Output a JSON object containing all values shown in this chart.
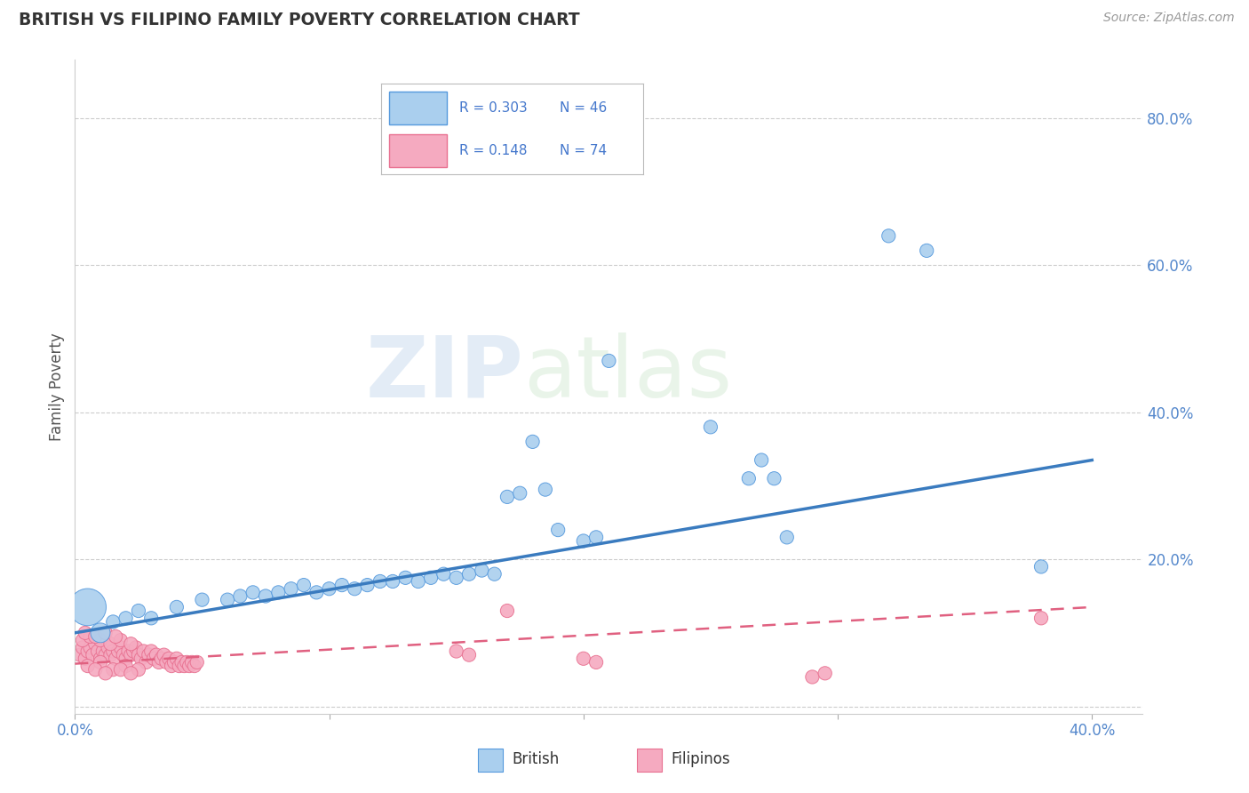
{
  "title": "BRITISH VS FILIPINO FAMILY POVERTY CORRELATION CHART",
  "source": "Source: ZipAtlas.com",
  "ylabel": "Family Poverty",
  "xlim": [
    0.0,
    0.42
  ],
  "ylim": [
    -0.01,
    0.88
  ],
  "legend_british_R": "0.303",
  "legend_british_N": "46",
  "legend_filipino_R": "0.148",
  "legend_filipino_N": "74",
  "british_color": "#aacfee",
  "british_line_color": "#3a7bbf",
  "british_edge_color": "#5599dd",
  "filipino_color": "#f5aac0",
  "filipino_line_color": "#e06080",
  "filipino_edge_color": "#e87090",
  "watermark_zip": "ZIP",
  "watermark_atlas": "atlas",
  "british_points": [
    [
      0.005,
      0.135
    ],
    [
      0.01,
      0.1
    ],
    [
      0.015,
      0.115
    ],
    [
      0.02,
      0.12
    ],
    [
      0.025,
      0.13
    ],
    [
      0.03,
      0.12
    ],
    [
      0.04,
      0.135
    ],
    [
      0.05,
      0.145
    ],
    [
      0.06,
      0.145
    ],
    [
      0.065,
      0.15
    ],
    [
      0.07,
      0.155
    ],
    [
      0.075,
      0.15
    ],
    [
      0.08,
      0.155
    ],
    [
      0.085,
      0.16
    ],
    [
      0.09,
      0.165
    ],
    [
      0.095,
      0.155
    ],
    [
      0.1,
      0.16
    ],
    [
      0.105,
      0.165
    ],
    [
      0.11,
      0.16
    ],
    [
      0.115,
      0.165
    ],
    [
      0.12,
      0.17
    ],
    [
      0.125,
      0.17
    ],
    [
      0.13,
      0.175
    ],
    [
      0.135,
      0.17
    ],
    [
      0.14,
      0.175
    ],
    [
      0.145,
      0.18
    ],
    [
      0.15,
      0.175
    ],
    [
      0.155,
      0.18
    ],
    [
      0.16,
      0.185
    ],
    [
      0.165,
      0.18
    ],
    [
      0.17,
      0.285
    ],
    [
      0.175,
      0.29
    ],
    [
      0.18,
      0.36
    ],
    [
      0.185,
      0.295
    ],
    [
      0.19,
      0.24
    ],
    [
      0.2,
      0.225
    ],
    [
      0.205,
      0.23
    ],
    [
      0.21,
      0.47
    ],
    [
      0.25,
      0.38
    ],
    [
      0.265,
      0.31
    ],
    [
      0.27,
      0.335
    ],
    [
      0.275,
      0.31
    ],
    [
      0.28,
      0.23
    ],
    [
      0.32,
      0.64
    ],
    [
      0.335,
      0.62
    ],
    [
      0.38,
      0.19
    ]
  ],
  "british_sizes": [
    900,
    250,
    120,
    120,
    120,
    120,
    120,
    120,
    120,
    120,
    120,
    120,
    120,
    120,
    120,
    120,
    120,
    120,
    120,
    120,
    120,
    120,
    120,
    120,
    120,
    120,
    120,
    120,
    120,
    120,
    120,
    120,
    120,
    120,
    120,
    120,
    120,
    120,
    120,
    120,
    120,
    120,
    120,
    120,
    120,
    120
  ],
  "filipino_points": [
    [
      0.002,
      0.07
    ],
    [
      0.003,
      0.08
    ],
    [
      0.004,
      0.065
    ],
    [
      0.005,
      0.075
    ],
    [
      0.006,
      0.08
    ],
    [
      0.007,
      0.07
    ],
    [
      0.008,
      0.085
    ],
    [
      0.009,
      0.075
    ],
    [
      0.01,
      0.065
    ],
    [
      0.011,
      0.075
    ],
    [
      0.012,
      0.07
    ],
    [
      0.013,
      0.08
    ],
    [
      0.014,
      0.07
    ],
    [
      0.015,
      0.075
    ],
    [
      0.016,
      0.065
    ],
    [
      0.017,
      0.075
    ],
    [
      0.018,
      0.08
    ],
    [
      0.019,
      0.07
    ],
    [
      0.02,
      0.065
    ],
    [
      0.021,
      0.075
    ],
    [
      0.022,
      0.07
    ],
    [
      0.023,
      0.075
    ],
    [
      0.024,
      0.08
    ],
    [
      0.025,
      0.07
    ],
    [
      0.026,
      0.065
    ],
    [
      0.027,
      0.075
    ],
    [
      0.028,
      0.06
    ],
    [
      0.029,
      0.07
    ],
    [
      0.03,
      0.075
    ],
    [
      0.031,
      0.065
    ],
    [
      0.032,
      0.07
    ],
    [
      0.033,
      0.06
    ],
    [
      0.034,
      0.065
    ],
    [
      0.035,
      0.07
    ],
    [
      0.036,
      0.06
    ],
    [
      0.037,
      0.065
    ],
    [
      0.038,
      0.055
    ],
    [
      0.039,
      0.06
    ],
    [
      0.04,
      0.065
    ],
    [
      0.041,
      0.055
    ],
    [
      0.042,
      0.06
    ],
    [
      0.043,
      0.055
    ],
    [
      0.044,
      0.06
    ],
    [
      0.045,
      0.055
    ],
    [
      0.046,
      0.06
    ],
    [
      0.047,
      0.055
    ],
    [
      0.048,
      0.06
    ],
    [
      0.005,
      0.055
    ],
    [
      0.01,
      0.06
    ],
    [
      0.015,
      0.05
    ],
    [
      0.02,
      0.055
    ],
    [
      0.025,
      0.05
    ],
    [
      0.008,
      0.05
    ],
    [
      0.012,
      0.045
    ],
    [
      0.018,
      0.05
    ],
    [
      0.022,
      0.045
    ],
    [
      0.003,
      0.09
    ],
    [
      0.006,
      0.095
    ],
    [
      0.01,
      0.09
    ],
    [
      0.014,
      0.085
    ],
    [
      0.018,
      0.09
    ],
    [
      0.022,
      0.085
    ],
    [
      0.004,
      0.1
    ],
    [
      0.008,
      0.095
    ],
    [
      0.012,
      0.1
    ],
    [
      0.016,
      0.095
    ],
    [
      0.15,
      0.075
    ],
    [
      0.155,
      0.07
    ],
    [
      0.17,
      0.13
    ],
    [
      0.2,
      0.065
    ],
    [
      0.205,
      0.06
    ],
    [
      0.29,
      0.04
    ],
    [
      0.295,
      0.045
    ],
    [
      0.38,
      0.12
    ]
  ],
  "filipino_sizes": [
    120,
    120,
    120,
    120,
    120,
    120,
    120,
    120,
    120,
    120,
    120,
    120,
    120,
    120,
    120,
    120,
    120,
    120,
    120,
    120,
    120,
    120,
    120,
    120,
    120,
    120,
    120,
    120,
    120,
    120,
    120,
    120,
    120,
    120,
    120,
    120,
    120,
    120,
    120,
    120,
    120,
    120,
    120,
    120,
    120,
    120,
    120,
    120,
    120,
    120,
    120,
    120,
    120,
    120,
    120,
    120,
    120,
    120,
    120,
    120,
    120,
    120,
    120,
    120,
    120,
    120,
    120,
    120,
    120,
    120,
    120,
    120,
    120,
    120
  ],
  "british_reg": [
    0.0,
    0.4,
    0.1,
    0.335
  ],
  "filipino_reg": [
    0.0,
    0.4,
    0.058,
    0.135
  ],
  "xtick_positions": [
    0.0,
    0.1,
    0.2,
    0.3,
    0.4
  ],
  "xtick_labels": [
    "0.0%",
    "",
    "",
    "",
    "40.0%"
  ],
  "ytick_positions": [
    0.0,
    0.2,
    0.4,
    0.6,
    0.8
  ],
  "ytick_labels": [
    "",
    "20.0%",
    "40.0%",
    "60.0%",
    "80.0%"
  ],
  "grid_color": "#cccccc",
  "spine_color": "#cccccc",
  "tick_color": "#5588cc",
  "title_color": "#333333",
  "source_color": "#999999",
  "ylabel_color": "#555555"
}
